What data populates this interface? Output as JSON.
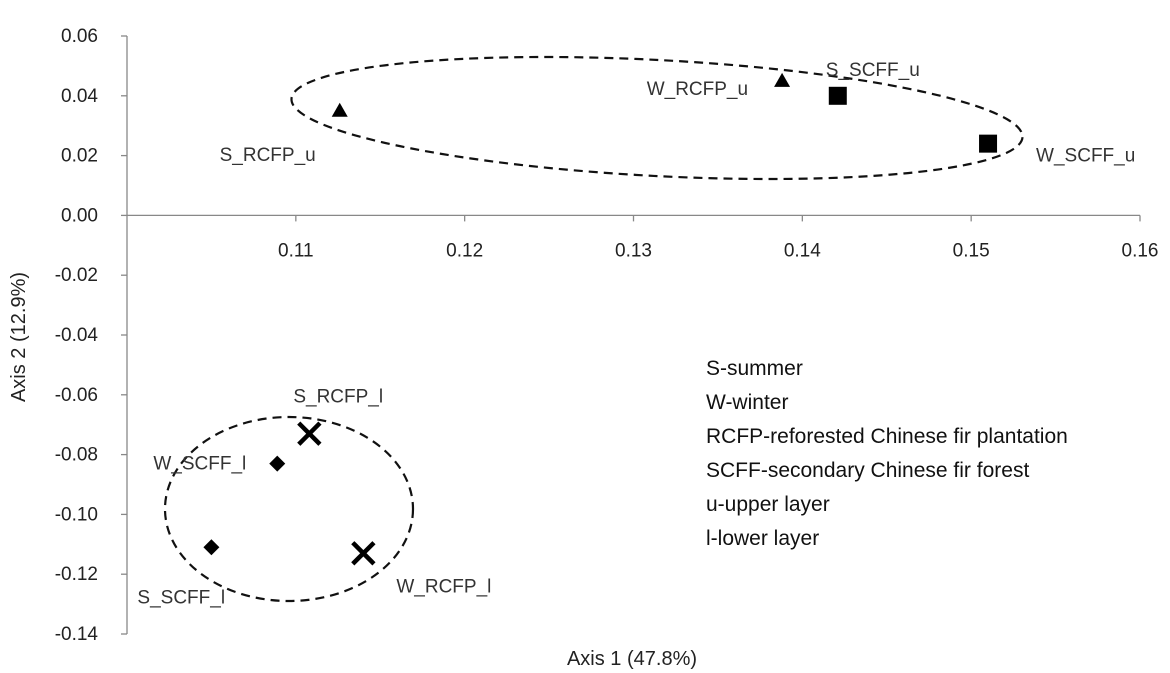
{
  "chart_data": {
    "type": "scatter",
    "title": "",
    "xlabel": "Axis 1  (47.8%)",
    "ylabel": "Axis 2  (12.9%)",
    "xlim": [
      0.1,
      0.16
    ],
    "ylim": [
      -0.14,
      0.06
    ],
    "x_ticks": [
      "0.11",
      "0.12",
      "0.13",
      "0.14",
      "0.15",
      "0.16"
    ],
    "x_tick_values": [
      0.11,
      0.12,
      0.13,
      0.14,
      0.15,
      0.16
    ],
    "y_ticks": [
      "0.06",
      "0.04",
      "0.02",
      "0.00",
      "-0.02",
      "-0.04",
      "-0.06",
      "-0.08",
      "-0.10",
      "-0.12",
      "-0.14"
    ],
    "y_tick_values": [
      0.06,
      0.04,
      0.02,
      0.0,
      -0.02,
      -0.04,
      -0.06,
      -0.08,
      -0.1,
      -0.12,
      -0.14
    ],
    "x_axis_crosses_at_y": 0.0,
    "grid": false,
    "points": [
      {
        "label": "S_RCFP_u",
        "x": 0.1126,
        "y": 0.035,
        "marker": "triangle"
      },
      {
        "label": "W_RCFP_u",
        "x": 0.1388,
        "y": 0.045,
        "marker": "triangle"
      },
      {
        "label": "S_SCFF_u",
        "x": 0.1421,
        "y": 0.04,
        "marker": "square"
      },
      {
        "label": "W_SCFF_u",
        "x": 0.151,
        "y": 0.024,
        "marker": "square"
      },
      {
        "label": "S_RCFP_l",
        "x": 0.1108,
        "y": -0.073,
        "marker": "x"
      },
      {
        "label": "W_RCFP_l",
        "x": 0.114,
        "y": -0.113,
        "marker": "x"
      },
      {
        "label": "W_SCFF_l",
        "x": 0.1089,
        "y": -0.083,
        "marker": "diamond"
      },
      {
        "label": "S_SCFF_l",
        "x": 0.105,
        "y": -0.111,
        "marker": "diamond"
      }
    ],
    "legend_text": [
      "S-summer",
      "W-winter",
      "RCFP-reforested Chinese fir plantation",
      "SCFF-secondary Chinese fir forest",
      "u-upper layer",
      "l-lower layer"
    ]
  }
}
